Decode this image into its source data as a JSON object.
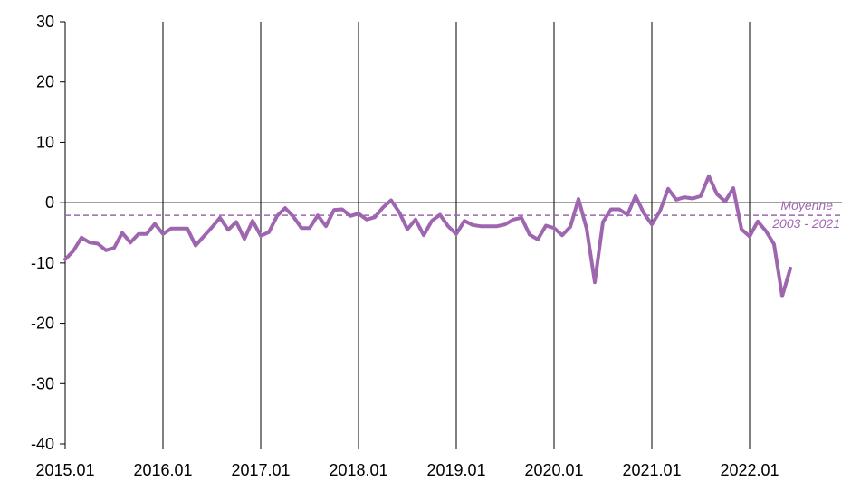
{
  "chart_data": {
    "type": "line",
    "title": "",
    "xlabel": "",
    "ylabel": "",
    "ylim": [
      -40,
      30
    ],
    "yticks": [
      30,
      20,
      10,
      0,
      -10,
      -20,
      -30,
      -40
    ],
    "xtick_labels": [
      "2015.01",
      "2016.01",
      "2017.01",
      "2018.01",
      "2019.01",
      "2020.01",
      "2021.01",
      "2022.01"
    ],
    "grid": "vertical lines at each January",
    "legend": "none",
    "x_start": "2015.01",
    "x_frequency": "monthly",
    "series": [
      {
        "color": "#9f66b0",
        "values": [
          -9.4,
          -8.0,
          -5.8,
          -6.6,
          -6.8,
          -7.9,
          -7.5,
          -5.0,
          -6.6,
          -5.2,
          -5.2,
          -3.5,
          -5.2,
          -4.3,
          -4.3,
          -4.3,
          -7.1,
          -5.6,
          -4.1,
          -2.5,
          -4.5,
          -3.2,
          -6.0,
          -3.0,
          -5.5,
          -4.9,
          -2.2,
          -0.9,
          -2.3,
          -4.2,
          -4.2,
          -2.1,
          -3.9,
          -1.2,
          -1.1,
          -2.2,
          -1.8,
          -2.8,
          -2.4,
          -0.8,
          0.4,
          -1.6,
          -4.4,
          -2.8,
          -5.4,
          -3.0,
          -2.0,
          -3.9,
          -5.2,
          -3.0,
          -3.7,
          -3.9,
          -3.9,
          -3.9,
          -3.6,
          -2.8,
          -2.5,
          -5.3,
          -6.1,
          -3.8,
          -4.2,
          -5.4,
          -4.0,
          0.6,
          -4.3,
          -13.2,
          -3.2,
          -1.1,
          -1.1,
          -2.0,
          1.1,
          -1.7,
          -3.6,
          -1.4,
          2.3,
          0.5,
          0.9,
          0.7,
          1.1,
          4.4,
          1.4,
          0.2,
          2.4,
          -4.4,
          -5.6,
          -3.1,
          -4.7,
          -6.9,
          -15.5,
          -10.9
        ]
      }
    ],
    "reference_line": {
      "value": -2.1,
      "style": "dashed",
      "color": "#9f66b0",
      "label_line1": "Moyenne",
      "label_line2": "2003 - 2021"
    }
  }
}
